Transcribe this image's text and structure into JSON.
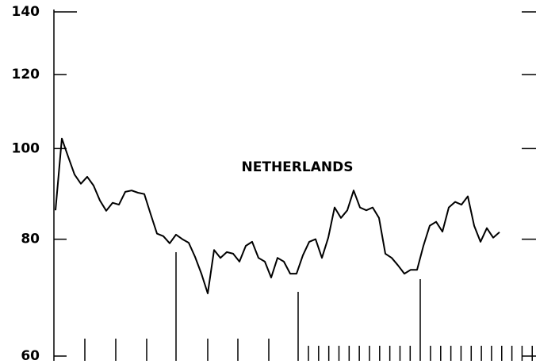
{
  "chart_data": {
    "type": "line",
    "annotations": [
      "NETHERLANDS"
    ],
    "values": [
      85.9,
      102.5,
      98.0,
      93.8,
      91.7,
      93.3,
      91.3,
      88.0,
      85.8,
      87.5,
      87.1,
      89.9,
      90.2,
      89.7,
      89.4,
      85.1,
      81.1,
      80.6,
      79.2,
      80.9,
      80.0,
      79.3,
      76.6,
      73.5,
      70.0,
      77.9,
      76.4,
      77.5,
      77.2,
      75.7,
      78.7,
      79.5,
      76.4,
      75.7,
      72.8,
      76.4,
      75.7,
      73.5,
      73.5,
      76.9,
      79.5,
      80.0,
      76.4,
      80.3,
      86.5,
      84.3,
      85.9,
      90.2,
      86.5,
      85.9,
      86.5,
      84.3,
      77.2,
      76.4,
      75.0,
      73.5,
      74.2,
      74.2,
      78.7,
      82.7,
      83.5,
      81.5,
      86.5,
      87.7,
      87.1,
      88.9,
      82.7,
      79.5,
      82.2,
      80.3,
      81.4
    ],
    "color": "#000000",
    "ylim": [
      60,
      140
    ],
    "yticks": [
      60,
      80,
      100,
      120,
      140
    ],
    "log_scale": true,
    "grid": false
  }
}
